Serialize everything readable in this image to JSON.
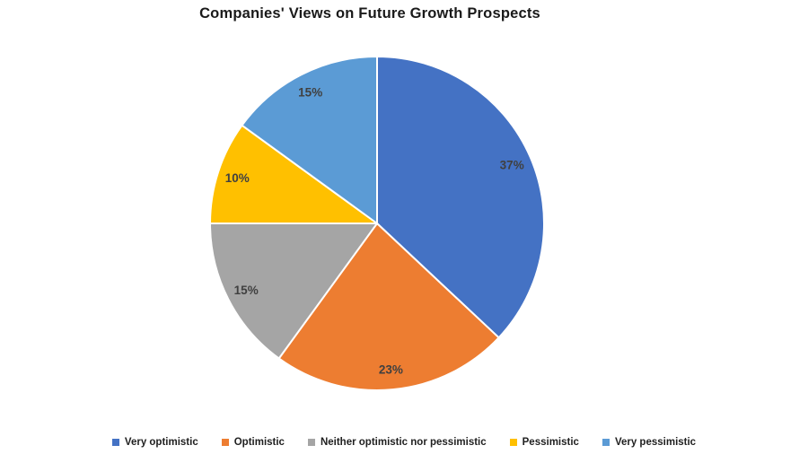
{
  "title": "Companies' Views on Future Growth Prospects",
  "chart_data": {
    "type": "pie",
    "title": "Companies' Views on Future Growth Prospects",
    "categories": [
      "Very optimistic",
      "Optimistic",
      "Neither optimistic nor pessimistic",
      "Pessimistic",
      "Very pessimistic"
    ],
    "values": [
      37,
      23,
      15,
      10,
      15
    ],
    "data_labels": [
      "37%",
      "23%",
      "15%",
      "10%",
      "15%"
    ],
    "colors": [
      "#4472C4",
      "#ED7D31",
      "#A5A5A5",
      "#FFC000",
      "#5B9BD5"
    ],
    "slice_separator_color": "#FFFFFF",
    "data_label_color": "#404040",
    "start_angle_deg": 0,
    "direction": "clockwise",
    "legend_position": "bottom",
    "grid": false
  }
}
